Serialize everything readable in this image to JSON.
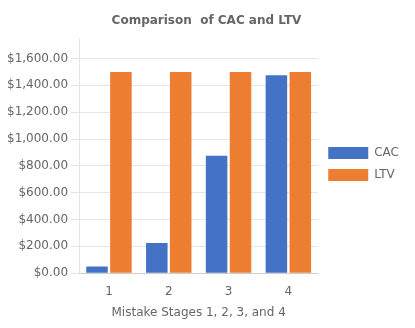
{
  "chart_data": {
    "type": "bar",
    "title": "Comparison  of CAC and LTV",
    "xlabel": "Mistake Stages 1, 2, 3, and 4",
    "categories": [
      "1",
      "2",
      "3",
      "4"
    ],
    "series": [
      {
        "name": "CAC",
        "color": "#4472C4",
        "values": [
          50,
          225,
          875,
          1475
        ]
      },
      {
        "name": "LTV",
        "color": "#ED7D31",
        "values": [
          1500,
          1500,
          1500,
          1500
        ]
      }
    ],
    "ylim": [
      0,
      1750
    ],
    "yticks": [
      {
        "value": 0,
        "label": "$0.00"
      },
      {
        "value": 200,
        "label": "$200.00"
      },
      {
        "value": 400,
        "label": "$400.00"
      },
      {
        "value": 600,
        "label": "$600.00"
      },
      {
        "value": 800,
        "label": "$800.00"
      },
      {
        "value": 1000,
        "label": "$1,000.00"
      },
      {
        "value": 1200,
        "label": "$1,200.00"
      },
      {
        "value": 1400,
        "label": "$1,400.00"
      },
      {
        "value": 1600,
        "label": "$1,600.00"
      }
    ],
    "grid": true,
    "legend": "right"
  }
}
